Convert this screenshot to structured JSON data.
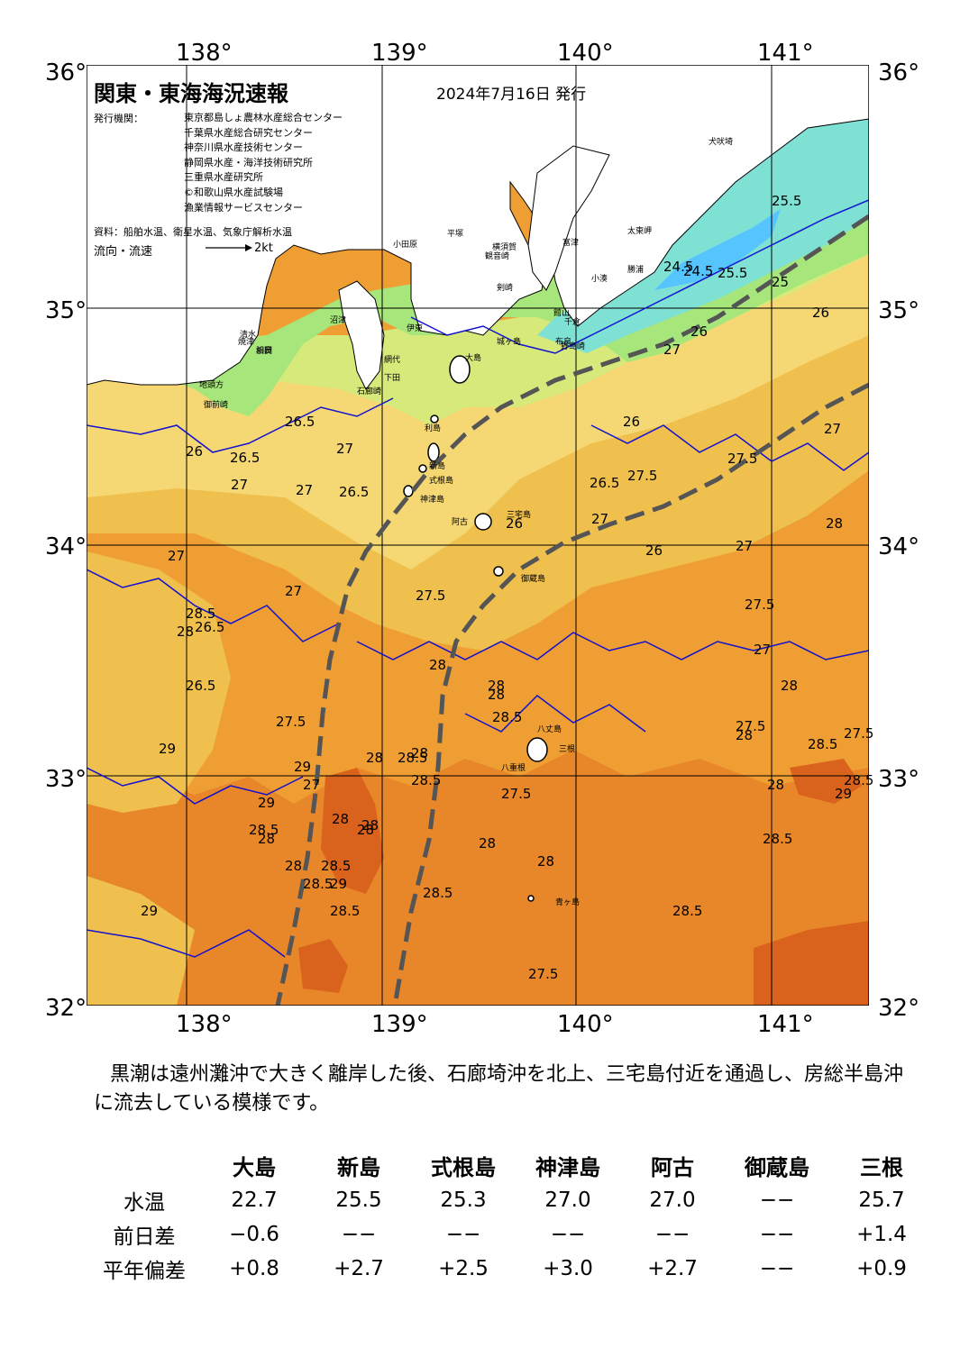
{
  "header": {
    "title": "関東・東海海況速報",
    "date": "2024年7月16日 発行",
    "org_label": "発行機関：",
    "orgs": [
      "東京都島しょ農林水産総合センター",
      "千葉県水産総合研究センター",
      "神奈川県水産技術センター",
      "静岡県水産・海洋技術研究所",
      "三重県水産研究所",
      "©和歌山県水産試験場",
      "漁業情報サービスセンター"
    ],
    "source": "資料：船舶水温、衛星水温、気象庁解析水温",
    "flow_label": "流向・流速",
    "flow_scale": "2kt"
  },
  "axes": {
    "lon": [
      "138°",
      "139°",
      "140°",
      "141°"
    ],
    "lat": [
      "36°",
      "35°",
      "34°",
      "33°",
      "32°"
    ]
  },
  "map": {
    "place_names": [
      "犬吠埼",
      "太東岬",
      "勝浦",
      "小湊",
      "館山",
      "布良",
      "野島崎",
      "富津",
      "千倉",
      "横須賀",
      "観音崎",
      "平塚",
      "小田原",
      "剣崎",
      "城ヶ島",
      "伊東",
      "網代",
      "大島",
      "下田",
      "石廊崎",
      "新島",
      "式根島",
      "神津島",
      "三宅島",
      "阿古",
      "御蔵島",
      "八丈島",
      "三根",
      "八重根",
      "青ヶ島",
      "御前崎",
      "地頭方",
      "沼津",
      "清水",
      "焼津",
      "相良",
      "浜岡",
      "利島"
    ],
    "sst_labels": [
      "24.5",
      "24.5",
      "25.5",
      "25",
      "25.5",
      "26",
      "26.5",
      "27",
      "26",
      "27",
      "27.5",
      "26.5",
      "27",
      "26",
      "26",
      "26.5",
      "27",
      "26",
      "27.5",
      "27",
      "27",
      "26.5",
      "27.5",
      "26.5",
      "27",
      "27",
      "27",
      "28",
      "26",
      "27.5",
      "27",
      "28",
      "28",
      "27.5",
      "27",
      "28",
      "28",
      "27.5",
      "28",
      "28.5",
      "28",
      "27.5",
      "28",
      "28",
      "28",
      "28.5",
      "28.5",
      "28",
      "27.5",
      "28.5",
      "28",
      "28",
      "28.5",
      "28",
      "28.5",
      "28.5",
      "29",
      "28.5",
      "29",
      "28",
      "28",
      "27.5",
      "29",
      "29",
      "29",
      "28.5",
      "28.5",
      "28.5",
      "28.5",
      "29",
      "28",
      "28.5",
      "26.5"
    ],
    "colors": {
      "land": "#ffffff",
      "sea_24": "#56c4ff",
      "sea_25": "#7fe0d4",
      "sea_26": "#a6e67a",
      "sea_265": "#d7e97a",
      "sea_27": "#f5d873",
      "sea_275": "#f0c04f",
      "sea_28": "#ef9e33",
      "sea_285": "#e8862a",
      "sea_29": "#d9631c",
      "kuroshio_axis": "#555555",
      "isotherm": "#1010d0"
    }
  },
  "summary": "黒潮は遠州灘沖で大きく離岸した後、石廊埼沖を北上、三宅島付近を通過し、房総半島沖に流去している模様です。",
  "observations": {
    "stations": [
      "大島",
      "新島",
      "式根島",
      "神津島",
      "阿古",
      "御蔵島",
      "三根"
    ],
    "rows": [
      {
        "label": "水温",
        "values": [
          "22.7",
          "25.5",
          "25.3",
          "27.0",
          "27.0",
          "−−",
          "25.7"
        ]
      },
      {
        "label": "前日差",
        "values": [
          "−0.6",
          "−−",
          "−−",
          "−−",
          "−−",
          "−−",
          "+1.4"
        ]
      },
      {
        "label": "平年偏差",
        "values": [
          "+0.8",
          "+2.7",
          "+2.5",
          "+3.0",
          "+2.7",
          "−−",
          "+0.9"
        ]
      }
    ]
  }
}
